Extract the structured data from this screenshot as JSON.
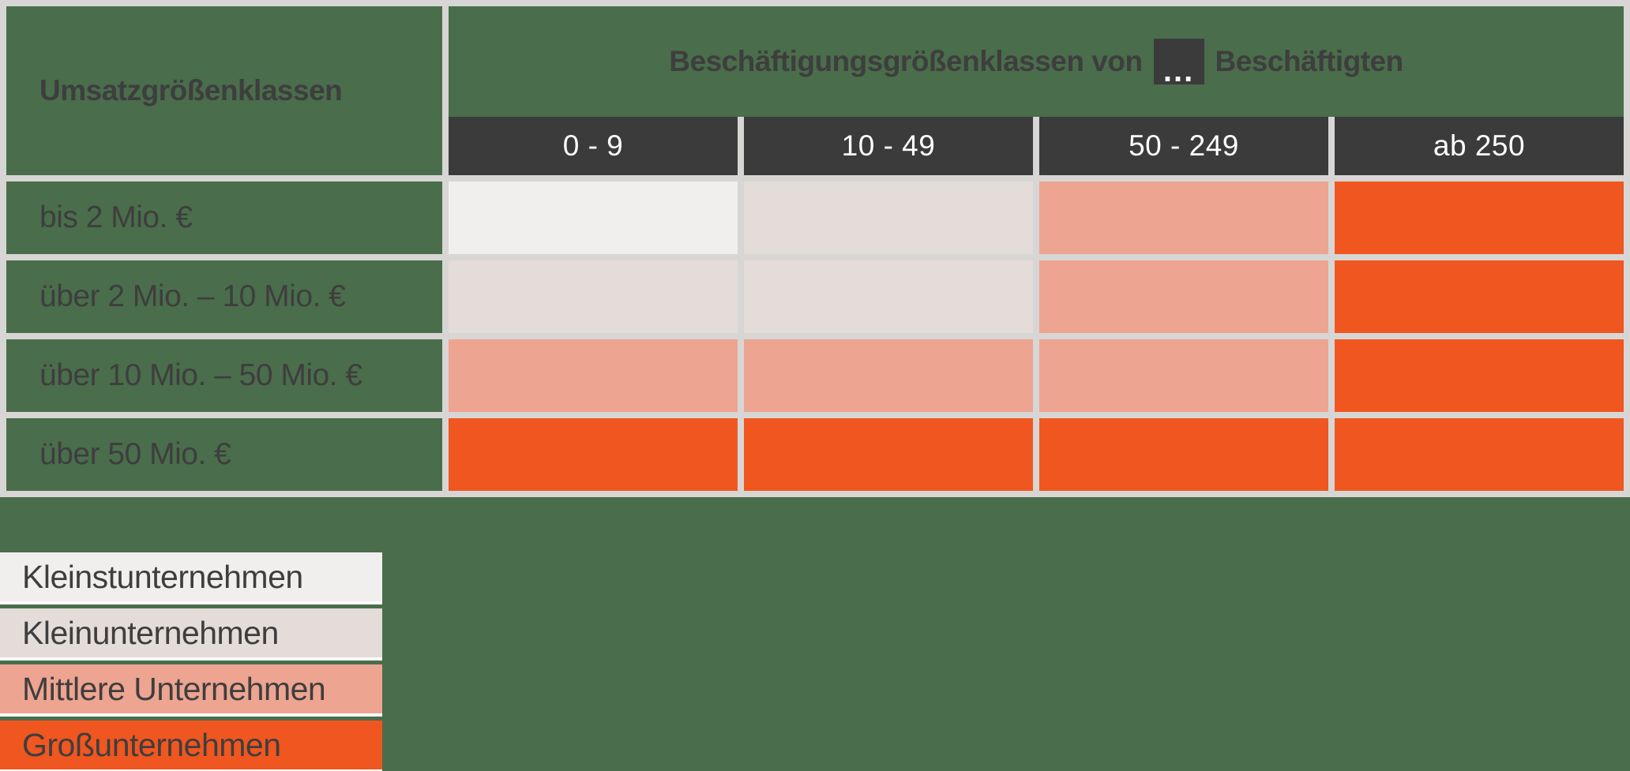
{
  "colors": {
    "background": "#4a6d4b",
    "grid_lines": "#d7d6d4",
    "header_dark": "#3b3b3b",
    "header_text": "#ffffff",
    "text": "#3e3e3e",
    "legend_underline": "#fbfbfa",
    "micro": "#f1efee",
    "small": "#e3dcd8",
    "medium": "#eda491",
    "large": "#f0561f"
  },
  "table": {
    "row_axis_title": "Umsatzgrößenklassen",
    "header_pre": "Beschäftigungsgrößenklassen von",
    "header_ellipsis": "...",
    "header_post": "Beschäftigten",
    "columns": [
      "0 - 9",
      "10 - 49",
      "50 - 249",
      "ab 250"
    ],
    "rows": [
      {
        "label": "bis 2 Mio. €",
        "cells": [
          "micro",
          "small",
          "medium",
          "large"
        ]
      },
      {
        "label": "über 2 Mio. – 10 Mio. €",
        "cells": [
          "small",
          "small",
          "medium",
          "large"
        ]
      },
      {
        "label": "über 10 Mio. – 50 Mio. €",
        "cells": [
          "medium",
          "medium",
          "medium",
          "large"
        ]
      },
      {
        "label": "über 50 Mio. €",
        "cells": [
          "large",
          "large",
          "large",
          "large"
        ]
      }
    ]
  },
  "legend": [
    {
      "label": "Kleinstunternehmen",
      "color_key": "micro"
    },
    {
      "label": "Kleinunternehmen",
      "color_key": "small"
    },
    {
      "label": "Mittlere Unternehmen",
      "color_key": "medium"
    },
    {
      "label": "Großunternehmen",
      "color_key": "large"
    }
  ]
}
